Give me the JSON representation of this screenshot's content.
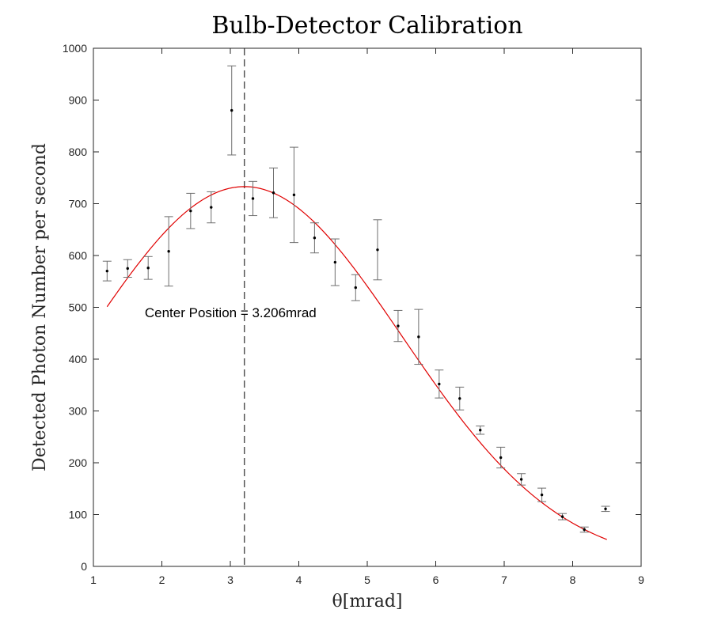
{
  "chart_data": {
    "type": "scatter",
    "title": "Bulb-Detector Calibration",
    "xlabel": "θ[mrad]",
    "ylabel": "Detected Photon Number per second",
    "xlim": [
      1,
      9
    ],
    "ylim": [
      0,
      1000
    ],
    "xticks": [
      1,
      2,
      3,
      4,
      5,
      6,
      7,
      8,
      9
    ],
    "yticks": [
      0,
      100,
      200,
      300,
      400,
      500,
      600,
      700,
      800,
      900,
      1000
    ],
    "grid": false,
    "box": true,
    "series": [
      {
        "kind": "errorbar",
        "color": "#000000",
        "error_color": "#6e6e6e",
        "points": [
          {
            "x": 1.2,
            "y": 570,
            "err": 19
          },
          {
            "x": 1.5,
            "y": 575,
            "err": 17
          },
          {
            "x": 1.8,
            "y": 576,
            "err": 22
          },
          {
            "x": 2.1,
            "y": 608,
            "err": 67
          },
          {
            "x": 2.42,
            "y": 686,
            "err": 34
          },
          {
            "x": 2.72,
            "y": 693,
            "err": 30
          },
          {
            "x": 3.02,
            "y": 880,
            "err": 86
          },
          {
            "x": 3.33,
            "y": 710,
            "err": 33
          },
          {
            "x": 3.63,
            "y": 721,
            "err": 48
          },
          {
            "x": 3.93,
            "y": 717,
            "err": 92
          },
          {
            "x": 4.23,
            "y": 634,
            "err": 29
          },
          {
            "x": 4.53,
            "y": 587,
            "err": 45
          },
          {
            "x": 4.83,
            "y": 538,
            "err": 25
          },
          {
            "x": 5.15,
            "y": 611,
            "err": 58
          },
          {
            "x": 5.45,
            "y": 464,
            "err": 30
          },
          {
            "x": 5.75,
            "y": 443,
            "err": 53
          },
          {
            "x": 6.05,
            "y": 352,
            "err": 27
          },
          {
            "x": 6.35,
            "y": 324,
            "err": 22
          },
          {
            "x": 6.65,
            "y": 263,
            "err": 8
          },
          {
            "x": 6.95,
            "y": 210,
            "err": 20
          },
          {
            "x": 7.25,
            "y": 168,
            "err": 11
          },
          {
            "x": 7.55,
            "y": 138,
            "err": 13
          },
          {
            "x": 7.85,
            "y": 96,
            "err": 6
          },
          {
            "x": 8.17,
            "y": 71,
            "err": 5
          },
          {
            "x": 8.48,
            "y": 111,
            "err": 5
          }
        ]
      },
      {
        "kind": "fit-line",
        "color": "#e00000",
        "model": "gaussian",
        "amplitude": 733,
        "center": 3.206,
        "sigma": 2.3,
        "x_range": [
          1.2,
          8.5
        ]
      },
      {
        "kind": "vertical-dashed-line",
        "color": "#000000",
        "x": 3.206
      }
    ],
    "annotations": [
      {
        "text": "Center Position = 3.206mrad",
        "x": 1.75,
        "y": 490
      }
    ]
  }
}
